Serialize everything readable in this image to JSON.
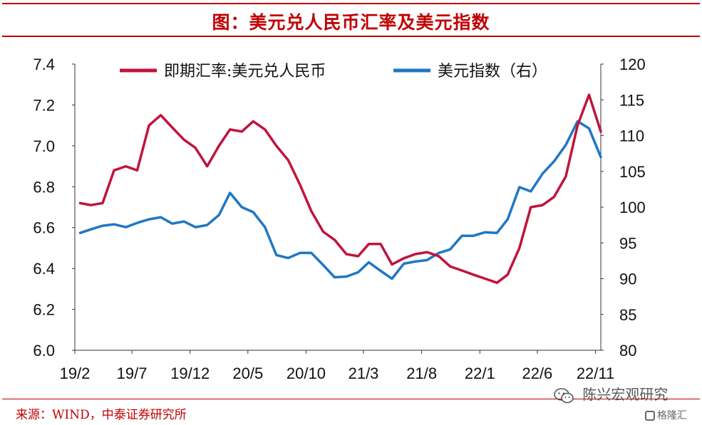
{
  "title": "图：美元兑人民币汇率及美元指数",
  "source": "来源：WIND，中泰证券研究所",
  "watermark": "陈兴宏观研究",
  "watermark2": "格隆汇",
  "colors": {
    "cny": "#c0143c",
    "dxy": "#1f77c4",
    "accent": "#c00000"
  },
  "chart_data": {
    "type": "line",
    "x_ticks": [
      "19/2",
      "19/7",
      "19/12",
      "20/5",
      "20/10",
      "21/3",
      "21/8",
      "22/1",
      "22/6",
      "22/11"
    ],
    "y_left": {
      "ylim": [
        6.0,
        7.4
      ],
      "ticks": [
        "6.0",
        "6.2",
        "6.4",
        "6.6",
        "6.8",
        "7.0",
        "7.2",
        "7.4"
      ]
    },
    "y_right": {
      "ylim": [
        80,
        120
      ],
      "ticks": [
        "80",
        "85",
        "90",
        "95",
        "100",
        "105",
        "110",
        "115",
        "120"
      ]
    },
    "legend_position": "top",
    "series": [
      {
        "name": "即期汇率:美元兑人民币",
        "axis": "left",
        "color": "#c0143c",
        "x": [
          "2019-02",
          "2019-03",
          "2019-04",
          "2019-05",
          "2019-06",
          "2019-07",
          "2019-08",
          "2019-09",
          "2019-10",
          "2019-11",
          "2019-12",
          "2020-01",
          "2020-02",
          "2020-03",
          "2020-04",
          "2020-05",
          "2020-06",
          "2020-07",
          "2020-08",
          "2020-09",
          "2020-10",
          "2020-11",
          "2020-12",
          "2021-01",
          "2021-02",
          "2021-03",
          "2021-04",
          "2021-05",
          "2021-06",
          "2021-07",
          "2021-08",
          "2021-09",
          "2021-10",
          "2021-11",
          "2021-12",
          "2022-01",
          "2022-02",
          "2022-03",
          "2022-04",
          "2022-05",
          "2022-06",
          "2022-07",
          "2022-08",
          "2022-09",
          "2022-10",
          "2022-11"
        ],
        "values": [
          6.72,
          6.71,
          6.72,
          6.88,
          6.9,
          6.88,
          7.1,
          7.15,
          7.09,
          7.03,
          6.99,
          6.9,
          7.0,
          7.08,
          7.07,
          7.12,
          7.08,
          7.0,
          6.93,
          6.81,
          6.68,
          6.58,
          6.54,
          6.47,
          6.46,
          6.52,
          6.52,
          6.42,
          6.45,
          6.47,
          6.48,
          6.46,
          6.41,
          6.39,
          6.37,
          6.35,
          6.33,
          6.37,
          6.5,
          6.7,
          6.71,
          6.75,
          6.85,
          7.1,
          7.25,
          7.07
        ]
      },
      {
        "name": "美元指数（右）",
        "axis": "right",
        "color": "#1f77c4",
        "x": [
          "2019-02",
          "2019-03",
          "2019-04",
          "2019-05",
          "2019-06",
          "2019-07",
          "2019-08",
          "2019-09",
          "2019-10",
          "2019-11",
          "2019-12",
          "2020-01",
          "2020-02",
          "2020-03",
          "2020-04",
          "2020-05",
          "2020-06",
          "2020-07",
          "2020-08",
          "2020-09",
          "2020-10",
          "2020-11",
          "2020-12",
          "2021-01",
          "2021-02",
          "2021-03",
          "2021-04",
          "2021-05",
          "2021-06",
          "2021-07",
          "2021-08",
          "2021-09",
          "2021-10",
          "2021-11",
          "2021-12",
          "2022-01",
          "2022-02",
          "2022-03",
          "2022-04",
          "2022-05",
          "2022-06",
          "2022-07",
          "2022-08",
          "2022-09",
          "2022-10",
          "2022-11"
        ],
        "values": [
          96.4,
          96.9,
          97.4,
          97.6,
          97.2,
          97.8,
          98.3,
          98.6,
          97.7,
          98.0,
          97.2,
          97.5,
          98.9,
          102.0,
          100.0,
          99.3,
          97.2,
          93.3,
          92.9,
          93.6,
          93.6,
          91.9,
          90.2,
          90.3,
          90.9,
          92.3,
          91.1,
          90.0,
          92.1,
          92.4,
          92.6,
          93.6,
          94.1,
          96.0,
          96.0,
          96.5,
          96.4,
          98.3,
          102.8,
          102.2,
          104.7,
          106.4,
          108.7,
          112.0,
          111.0,
          107.0
        ]
      }
    ]
  }
}
